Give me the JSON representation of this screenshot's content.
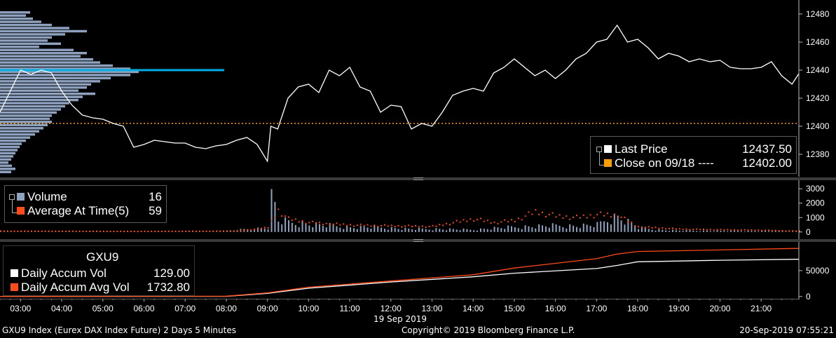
{
  "colors": {
    "background": "#000000",
    "price_line": "#ffffff",
    "volume_bar": "#8ea2c0",
    "average_dot": "#ff4a1a",
    "close_line": "#ff9e00",
    "profile_bar": "#8ea2c0",
    "poc_line": "#00aee6",
    "accum_vol_line": "#ffffff",
    "accum_avg_line": "#ff4a1a"
  },
  "legend_price": {
    "last_price_label": "Last Price",
    "last_price_value": "12437.50",
    "close_label": "Close on 09/18 ----",
    "close_value": "12402.00"
  },
  "legend_volume": {
    "volume_label": "Volume",
    "volume_value": "16",
    "avg_label": "Average At Time(5)",
    "avg_value": "59"
  },
  "legend_accum": {
    "ticker": "GXU9",
    "accum_vol_label": "Daily Accum Vol",
    "accum_vol_value": "129.00",
    "accum_avg_label": "Daily Accum Avg Vol",
    "accum_avg_value": "1732.80"
  },
  "x_axis": {
    "ticks": [
      "03:00",
      "04:00",
      "05:00",
      "06:00",
      "07:00",
      "08:00",
      "09:00",
      "10:00",
      "11:00",
      "12:00",
      "13:00",
      "14:00",
      "15:00",
      "16:00",
      "17:00",
      "18:00",
      "19:00",
      "20:00",
      "21:00"
    ],
    "date_label": "19 Sep 2019"
  },
  "footer": {
    "left": "GXU9 Index (Eurex DAX Index Future) 2 Days 5 Minutes",
    "center": "Copyright© 2019 Bloomberg Finance L.P.",
    "right": "20-Sep-2019 07:55:21"
  },
  "chart_data": [
    {
      "type": "line",
      "panel": "price",
      "y_ticks": [
        "12480",
        "12460",
        "12440",
        "12420",
        "12400",
        "12380"
      ],
      "ylim": [
        12366,
        12486
      ],
      "xlim": [
        "02:30",
        "21:55"
      ],
      "close_level": 12402,
      "series": [
        {
          "name": "Last Price",
          "x": [
            "02:30",
            "02:45",
            "03:00",
            "03:15",
            "03:30",
            "03:45",
            "04:00",
            "04:15",
            "04:30",
            "04:45",
            "05:00",
            "05:15",
            "05:30",
            "05:45",
            "06:00",
            "06:15",
            "06:30",
            "06:45",
            "07:00",
            "07:15",
            "07:30",
            "07:45",
            "08:00",
            "08:15",
            "08:30",
            "08:45",
            "09:00",
            "09:05",
            "09:15",
            "09:30",
            "09:45",
            "10:00",
            "10:15",
            "10:30",
            "10:45",
            "11:00",
            "11:15",
            "11:30",
            "11:45",
            "12:00",
            "12:15",
            "12:30",
            "12:45",
            "13:00",
            "13:15",
            "13:30",
            "13:45",
            "14:00",
            "14:15",
            "14:30",
            "14:45",
            "15:00",
            "15:15",
            "15:30",
            "15:45",
            "16:00",
            "16:15",
            "16:30",
            "16:45",
            "17:00",
            "17:15",
            "17:30",
            "17:45",
            "18:00",
            "18:15",
            "18:30",
            "18:45",
            "19:00",
            "19:15",
            "19:30",
            "19:45",
            "20:00",
            "20:15",
            "20:30",
            "20:45",
            "21:00",
            "21:15",
            "21:30",
            "21:45",
            "21:55"
          ],
          "values": [
            12410,
            12425,
            12440,
            12437,
            12440,
            12438,
            12425,
            12415,
            12408,
            12406,
            12405,
            12402,
            12400,
            12385,
            12387,
            12390,
            12389,
            12388,
            12388,
            12385,
            12384,
            12386,
            12387,
            12390,
            12392,
            12387,
            12375,
            12400,
            12398,
            12420,
            12428,
            12430,
            12424,
            12440,
            12436,
            12442,
            12428,
            12425,
            12410,
            12415,
            12414,
            12398,
            12402,
            12400,
            12410,
            12422,
            12425,
            12427,
            12425,
            12438,
            12442,
            12448,
            12442,
            12436,
            12440,
            12434,
            12440,
            12448,
            12452,
            12460,
            12462,
            12472,
            12460,
            12462,
            12456,
            12448,
            12452,
            12450,
            12446,
            12448,
            12446,
            12447,
            12442,
            12441,
            12441,
            12442,
            12446,
            12436,
            12430,
            12437.5
          ]
        }
      ]
    },
    {
      "type": "bar",
      "panel": "volume",
      "y_ticks": [
        "3000",
        "2000",
        "1000",
        "0"
      ],
      "ylim": [
        -300,
        3300
      ],
      "series": [
        {
          "name": "Volume",
          "x": [
            "08:00",
            "08:30",
            "09:00",
            "09:05",
            "09:15",
            "09:30",
            "09:45",
            "10:00",
            "10:15",
            "10:30",
            "10:45",
            "11:00",
            "11:30",
            "12:00",
            "12:30",
            "13:00",
            "13:30",
            "14:00",
            "14:30",
            "15:00",
            "15:30",
            "16:00",
            "16:30",
            "17:00",
            "17:15",
            "17:30",
            "17:45",
            "18:00",
            "18:30",
            "19:00",
            "20:00",
            "21:00",
            "21:55"
          ],
          "values": [
            80,
            200,
            300,
            2980,
            800,
            700,
            600,
            550,
            500,
            450,
            400,
            320,
            350,
            280,
            200,
            220,
            190,
            160,
            280,
            350,
            400,
            450,
            420,
            500,
            900,
            1100,
            700,
            300,
            150,
            100,
            80,
            70,
            16
          ]
        },
        {
          "name": "Average At Time(5)",
          "x": [
            "02:30",
            "04:00",
            "06:00",
            "08:00",
            "08:30",
            "09:00",
            "09:15",
            "09:30",
            "10:00",
            "10:30",
            "11:00",
            "12:00",
            "13:00",
            "14:00",
            "14:30",
            "15:00",
            "15:30",
            "16:00",
            "16:30",
            "17:00",
            "17:30",
            "18:00",
            "19:00",
            "20:00",
            "21:00",
            "21:55"
          ],
          "values": [
            60,
            50,
            40,
            60,
            120,
            300,
            1500,
            900,
            650,
            550,
            480,
            420,
            380,
            900,
            650,
            800,
            1400,
            1100,
            1000,
            1200,
            1150,
            350,
            200,
            150,
            120,
            59
          ]
        }
      ]
    },
    {
      "type": "line",
      "panel": "accumulation",
      "y_ticks": [
        "50000",
        "0"
      ],
      "ylim": [
        -3000,
        100000
      ],
      "series": [
        {
          "name": "Daily Accum Vol",
          "x": [
            "02:30",
            "08:00",
            "09:00",
            "10:00",
            "12:00",
            "14:00",
            "15:00",
            "17:00",
            "17:30",
            "18:00",
            "20:00",
            "21:55"
          ],
          "values": [
            0,
            300,
            6000,
            16000,
            28000,
            38000,
            45000,
            54000,
            60000,
            67000,
            70000,
            72000
          ]
        },
        {
          "name": "Daily Accum Avg Vol",
          "x": [
            "02:30",
            "08:00",
            "09:00",
            "10:00",
            "12:00",
            "14:00",
            "15:00",
            "17:00",
            "17:30",
            "18:00",
            "20:00",
            "21:55"
          ],
          "values": [
            0,
            600,
            7000,
            18000,
            30000,
            42000,
            55000,
            73000,
            82000,
            87000,
            90000,
            93000
          ]
        }
      ]
    }
  ]
}
